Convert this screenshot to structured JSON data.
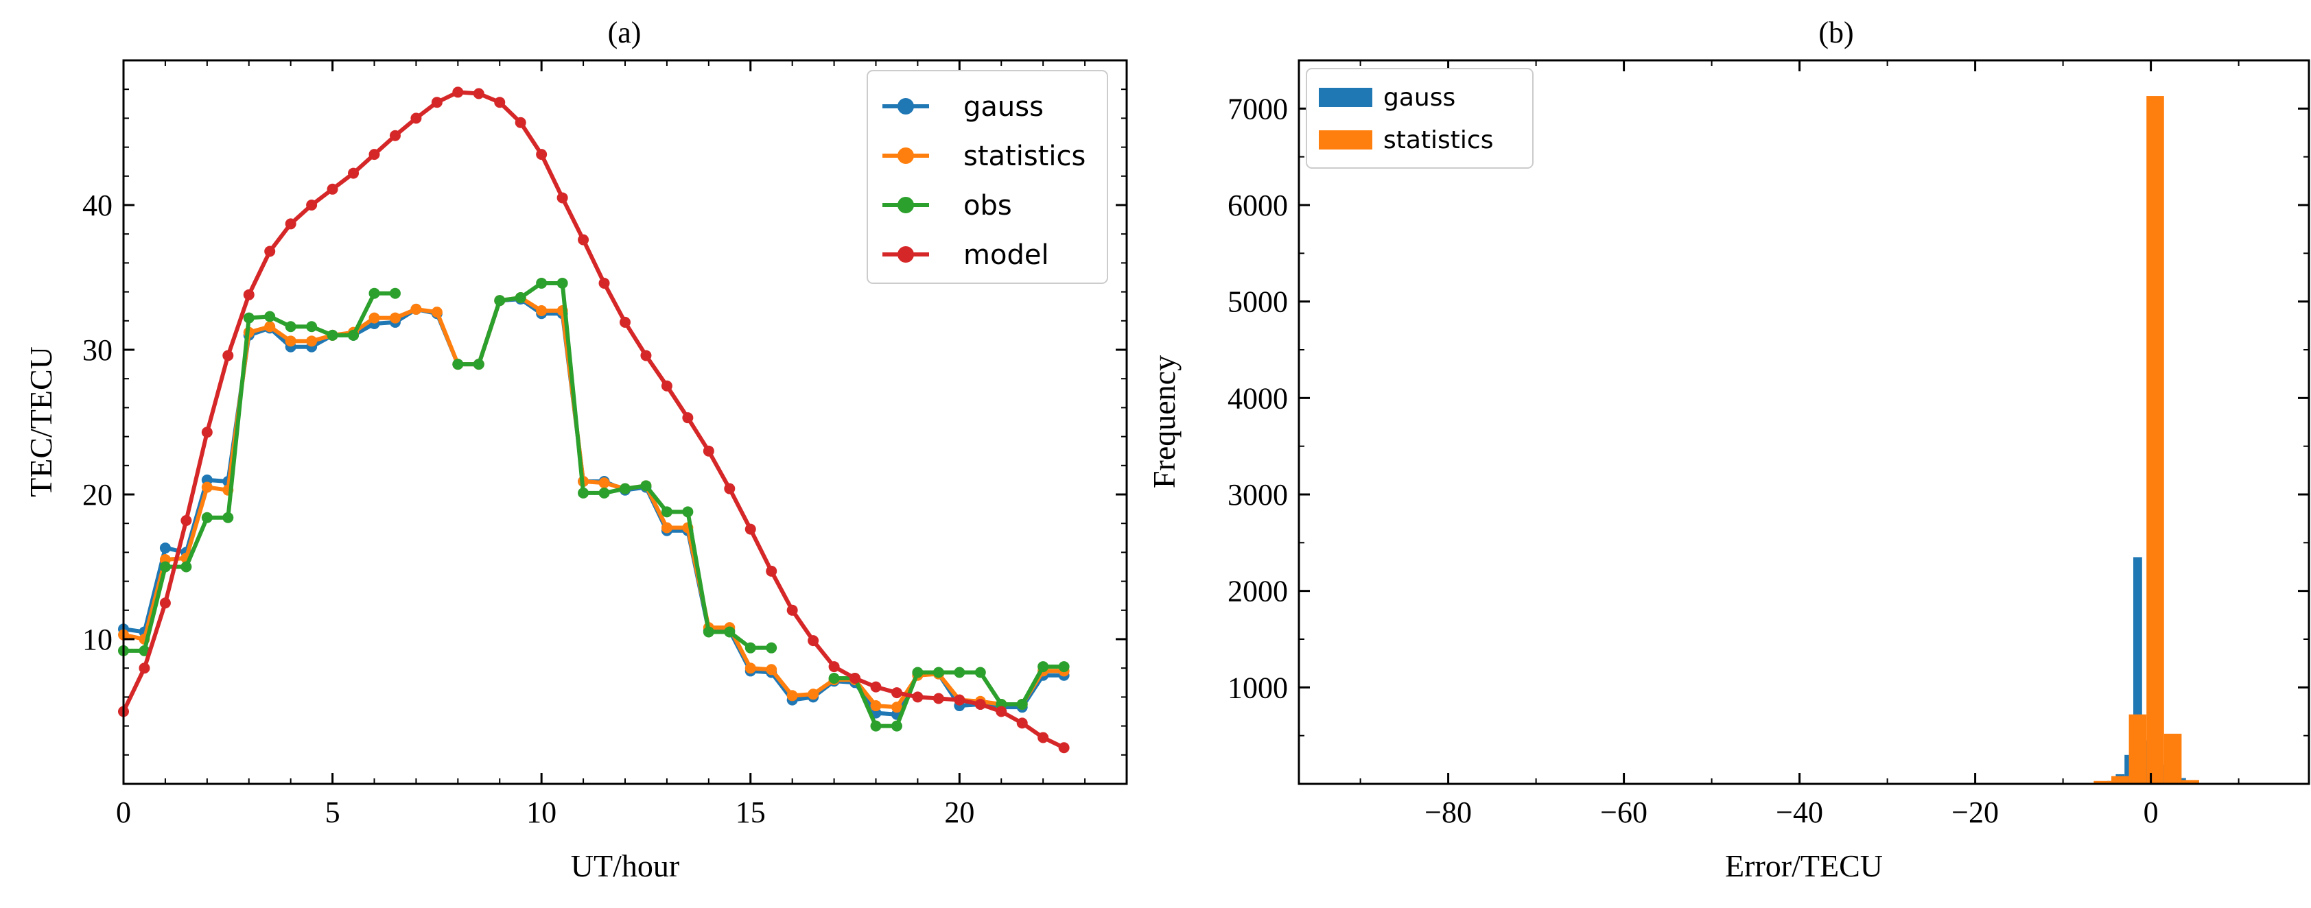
{
  "charts": [
    {
      "type": "line",
      "title": "(a)",
      "xlabel": "UT/hour",
      "ylabel": "TEC/TECU",
      "xlim": [
        0,
        24
      ],
      "ylim": [
        0,
        50
      ],
      "xticks": [
        0,
        5,
        10,
        15,
        20
      ],
      "yticks": [
        10,
        20,
        30,
        40
      ],
      "legend_position": "top-right",
      "series": [
        {
          "name": "gauss",
          "color": "#1f77b4",
          "points": [
            [
              0,
              10.7
            ],
            [
              0.5,
              10.5
            ],
            [
              1,
              16.3
            ],
            [
              1.5,
              16.0
            ],
            [
              2,
              21.0
            ],
            [
              2.5,
              20.9
            ],
            [
              3,
              31.0
            ],
            [
              3.5,
              31.5
            ],
            [
              4,
              30.2
            ],
            [
              4.5,
              30.2
            ],
            [
              5,
              31.0
            ],
            [
              5.5,
              31.0
            ],
            [
              6,
              31.8
            ],
            [
              6.5,
              31.9
            ],
            [
              7,
              32.8
            ],
            [
              7.5,
              32.5
            ],
            [
              8,
              29.0
            ],
            [
              8.5,
              29.0
            ],
            [
              9,
              33.4
            ],
            [
              9.5,
              33.5
            ],
            [
              10,
              32.5
            ],
            [
              10.5,
              32.5
            ],
            [
              11,
              20.9
            ],
            [
              11.5,
              20.9
            ],
            [
              12,
              20.3
            ],
            [
              12.5,
              20.5
            ],
            [
              13,
              17.5
            ],
            [
              13.5,
              17.5
            ],
            [
              14,
              10.6
            ],
            [
              14.5,
              10.6
            ],
            [
              15,
              7.8
            ],
            [
              15.5,
              7.7
            ],
            [
              16,
              5.8
            ],
            [
              16.5,
              6.0
            ],
            [
              17,
              7.1
            ],
            [
              17.5,
              7.0
            ],
            [
              18,
              4.9
            ],
            [
              18.5,
              4.8
            ],
            [
              19,
              7.6
            ],
            [
              19.5,
              7.6
            ],
            [
              20,
              5.4
            ],
            [
              20.5,
              5.5
            ],
            [
              21,
              5.3
            ],
            [
              21.5,
              5.3
            ],
            [
              22,
              7.5
            ],
            [
              22.5,
              7.5
            ]
          ]
        },
        {
          "name": "statistics",
          "color": "#ff7f0e",
          "points": [
            [
              0,
              10.3
            ],
            [
              0.5,
              10.0
            ],
            [
              1,
              15.5
            ],
            [
              1.5,
              15.6
            ],
            [
              2,
              20.5
            ],
            [
              2.5,
              20.3
            ],
            [
              3,
              31.2
            ],
            [
              3.5,
              31.6
            ],
            [
              4,
              30.6
            ],
            [
              4.5,
              30.6
            ],
            [
              5,
              31.0
            ],
            [
              5.5,
              31.2
            ],
            [
              6,
              32.2
            ],
            [
              6.5,
              32.2
            ],
            [
              7,
              32.8
            ],
            [
              7.5,
              32.6
            ],
            [
              8,
              29.0
            ],
            [
              8.5,
              29.0
            ],
            [
              9,
              33.4
            ],
            [
              9.5,
              33.6
            ],
            [
              10,
              32.7
            ],
            [
              10.5,
              32.7
            ],
            [
              11,
              20.9
            ],
            [
              11.5,
              20.8
            ],
            [
              12,
              20.4
            ],
            [
              12.5,
              20.6
            ],
            [
              13,
              17.7
            ],
            [
              13.5,
              17.7
            ],
            [
              14,
              10.8
            ],
            [
              14.5,
              10.8
            ],
            [
              15,
              8.0
            ],
            [
              15.5,
              7.9
            ],
            [
              16,
              6.1
            ],
            [
              16.5,
              6.2
            ],
            [
              17,
              7.2
            ],
            [
              17.5,
              7.2
            ],
            [
              18,
              5.4
            ],
            [
              18.5,
              5.3
            ],
            [
              19,
              7.5
            ],
            [
              19.5,
              7.6
            ],
            [
              20,
              5.8
            ],
            [
              20.5,
              5.7
            ],
            [
              21,
              5.5
            ],
            [
              21.5,
              5.5
            ],
            [
              22,
              7.8
            ],
            [
              22.5,
              7.8
            ]
          ]
        },
        {
          "name": "obs",
          "color": "#2ca02c",
          "segments": [
            [
              [
                0,
                9.2
              ],
              [
                0.5,
                9.2
              ],
              [
                1,
                15.0
              ],
              [
                1.5,
                15.0
              ],
              [
                2,
                18.4
              ],
              [
                2.5,
                18.4
              ],
              [
                3,
                32.2
              ],
              [
                3.5,
                32.3
              ],
              [
                4,
                31.6
              ],
              [
                4.5,
                31.6
              ],
              [
                5,
                31.0
              ],
              [
                5.5,
                31.0
              ],
              [
                6,
                33.9
              ],
              [
                6.5,
                33.9
              ]
            ],
            [
              [
                8,
                29.0
              ],
              [
                8.5,
                29.0
              ],
              [
                9,
                33.4
              ],
              [
                9.5,
                33.6
              ],
              [
                10,
                34.6
              ],
              [
                10.5,
                34.6
              ],
              [
                11,
                20.1
              ],
              [
                11.5,
                20.1
              ],
              [
                12,
                20.4
              ],
              [
                12.5,
                20.6
              ],
              [
                13,
                18.8
              ],
              [
                13.5,
                18.8
              ],
              [
                14,
                10.5
              ],
              [
                14.5,
                10.5
              ],
              [
                15,
                9.4
              ],
              [
                15.5,
                9.4
              ]
            ],
            [
              [
                17,
                7.3
              ],
              [
                17.5,
                7.3
              ],
              [
                18,
                4.0
              ],
              [
                18.5,
                4.0
              ],
              [
                19,
                7.7
              ],
              [
                19.5,
                7.7
              ],
              [
                20,
                7.7
              ],
              [
                20.5,
                7.7
              ],
              [
                21,
                5.5
              ],
              [
                21.5,
                5.5
              ],
              [
                22,
                8.1
              ],
              [
                22.5,
                8.1
              ]
            ]
          ]
        },
        {
          "name": "model",
          "color": "#d62728",
          "points": [
            [
              0,
              5.0
            ],
            [
              0.5,
              8.0
            ],
            [
              1,
              12.5
            ],
            [
              1.5,
              18.2
            ],
            [
              2,
              24.3
            ],
            [
              2.5,
              29.6
            ],
            [
              3,
              33.8
            ],
            [
              3.5,
              36.8
            ],
            [
              4,
              38.7
            ],
            [
              4.5,
              40.0
            ],
            [
              5,
              41.1
            ],
            [
              5.5,
              42.2
            ],
            [
              6,
              43.5
            ],
            [
              6.5,
              44.8
            ],
            [
              7,
              46.0
            ],
            [
              7.5,
              47.1
            ],
            [
              8,
              47.8
            ],
            [
              8.5,
              47.7
            ],
            [
              9,
              47.1
            ],
            [
              9.5,
              45.7
            ],
            [
              10,
              43.5
            ],
            [
              10.5,
              40.5
            ],
            [
              11,
              37.6
            ],
            [
              11.5,
              34.6
            ],
            [
              12,
              31.9
            ],
            [
              12.5,
              29.6
            ],
            [
              13,
              27.5
            ],
            [
              13.5,
              25.3
            ],
            [
              14,
              23.0
            ],
            [
              14.5,
              20.4
            ],
            [
              15,
              17.6
            ],
            [
              15.5,
              14.7
            ],
            [
              16,
              12.0
            ],
            [
              16.5,
              9.9
            ],
            [
              17,
              8.1
            ],
            [
              17.5,
              7.3
            ],
            [
              18,
              6.7
            ],
            [
              18.5,
              6.3
            ],
            [
              19,
              6.0
            ],
            [
              19.5,
              5.9
            ],
            [
              20,
              5.8
            ],
            [
              20.5,
              5.5
            ],
            [
              21,
              5.0
            ],
            [
              21.5,
              4.2
            ],
            [
              22,
              3.2
            ],
            [
              22.5,
              2.5
            ]
          ]
        }
      ]
    },
    {
      "type": "bar",
      "title": "(b)",
      "xlabel": "Error/TECU",
      "ylabel": "Frequency",
      "xlim": [
        -97,
        18
      ],
      "ylim": [
        0,
        7500
      ],
      "xticks": [
        -80,
        -60,
        -40,
        -20,
        0
      ],
      "xtick_labels": [
        "−80",
        "−60",
        "−40",
        "−20",
        "0"
      ],
      "yticks": [
        1000,
        2000,
        3000,
        4000,
        5000,
        6000,
        7000
      ],
      "legend_position": "top-left",
      "series": [
        {
          "name": "gauss",
          "color": "#1f77b4",
          "bins": [
            [
              -5.0,
              -4.0,
              30
            ],
            [
              -4.0,
              -3.0,
              100
            ],
            [
              -3.0,
              -2.0,
              300
            ],
            [
              -2.0,
              -1.0,
              2350
            ],
            [
              -1.0,
              0.0,
              450
            ],
            [
              0.0,
              1.0,
              5520
            ],
            [
              1.0,
              2.0,
              200
            ],
            [
              2.0,
              3.0,
              350
            ],
            [
              3.0,
              4.0,
              60
            ]
          ]
        },
        {
          "name": "statistics",
          "color": "#ff7f0e",
          "bins": [
            [
              -6.5,
              -4.5,
              30
            ],
            [
              -4.5,
              -2.5,
              80
            ],
            [
              -2.5,
              -0.5,
              720
            ],
            [
              -0.5,
              1.5,
              7130
            ],
            [
              1.5,
              3.5,
              520
            ],
            [
              3.5,
              5.5,
              40
            ]
          ]
        }
      ]
    }
  ]
}
